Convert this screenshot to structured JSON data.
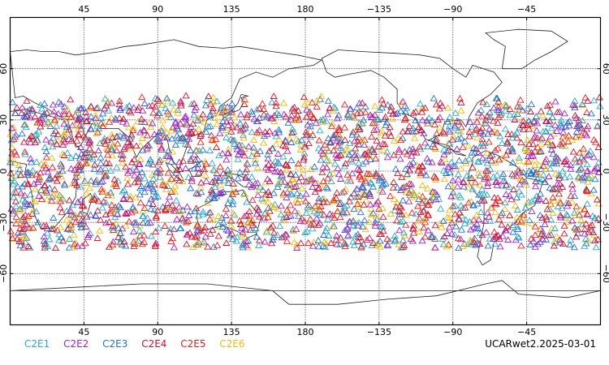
{
  "top_lon_labels": [
    "45",
    "90",
    "135",
    "180",
    "−135",
    "−90",
    "−45"
  ],
  "bottom_lon_labels": [
    "45",
    "90",
    "135",
    "180",
    "−135",
    "−90",
    "−45"
  ],
  "lat_labels": [
    "60",
    "30",
    "0",
    "−30",
    "−60"
  ],
  "legend": [
    {
      "label": "C2E1",
      "color": "#29a9c9"
    },
    {
      "label": "C2E2",
      "color": "#a020c8"
    },
    {
      "label": "C2E3",
      "color": "#1f70d0"
    },
    {
      "label": "C2E4",
      "color": "#c8102e"
    },
    {
      "label": "C2E5",
      "color": "#e81c1c"
    },
    {
      "label": "C2E6",
      "color": "#f2b90d"
    }
  ],
  "footer": "UCARwet2.2025-03-01",
  "map": {
    "lon_range": [
      0,
      360
    ],
    "lat_range": [
      -90,
      90
    ],
    "grid": "dotted",
    "marker": "open-triangle",
    "observation_lat_band": [
      -45,
      45
    ]
  }
}
